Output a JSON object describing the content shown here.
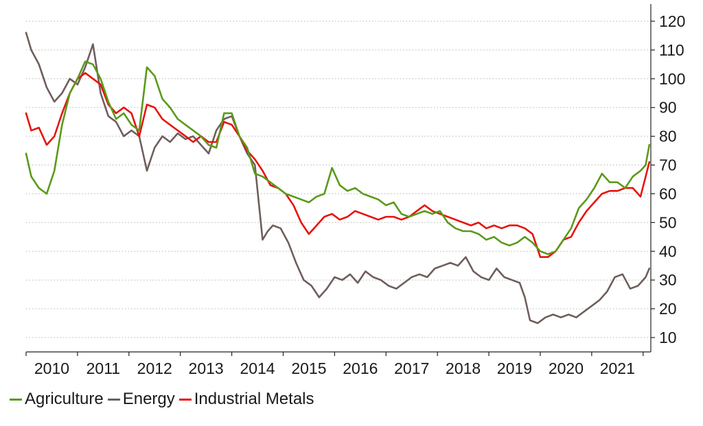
{
  "chart_data": {
    "type": "line",
    "title": "",
    "xlabel": "",
    "ylabel": "",
    "ylim": [
      5,
      125
    ],
    "xlim": [
      2009.75,
      2021.9
    ],
    "y_ticks": [
      10,
      20,
      30,
      40,
      50,
      60,
      70,
      80,
      90,
      100,
      110,
      120
    ],
    "y_axis_position": "right",
    "x_tick_labels": [
      "2010",
      "2011",
      "2012",
      "2013",
      "2014",
      "2015",
      "2016",
      "2017",
      "2018",
      "2019",
      "2020",
      "2021"
    ],
    "grid": "horizontal dotted",
    "legend_position": "bottom-left",
    "series": [
      {
        "name": "Agriculture",
        "color": "#5a9a1a",
        "x": [
          2009.75,
          2009.85,
          2010.0,
          2010.15,
          2010.3,
          2010.45,
          2010.6,
          2010.75,
          2010.9,
          2011.05,
          2011.2,
          2011.35,
          2011.5,
          2011.65,
          2011.8,
          2011.95,
          2012.1,
          2012.25,
          2012.4,
          2012.55,
          2012.7,
          2012.85,
          2013.0,
          2013.15,
          2013.3,
          2013.45,
          2013.6,
          2013.75,
          2013.9,
          2014.05,
          2014.2,
          2014.35,
          2014.5,
          2014.65,
          2014.8,
          2014.95,
          2015.1,
          2015.25,
          2015.4,
          2015.55,
          2015.7,
          2015.85,
          2016.0,
          2016.15,
          2016.3,
          2016.45,
          2016.6,
          2016.75,
          2016.9,
          2017.05,
          2017.2,
          2017.35,
          2017.5,
          2017.65,
          2017.8,
          2017.95,
          2018.1,
          2018.25,
          2018.4,
          2018.55,
          2018.7,
          2018.85,
          2019.0,
          2019.15,
          2019.3,
          2019.45,
          2019.6,
          2019.75,
          2019.9,
          2020.05,
          2020.2,
          2020.35,
          2020.5,
          2020.65,
          2020.8,
          2020.95,
          2021.1,
          2021.25,
          2021.4,
          2021.55,
          2021.7,
          2021.8,
          2021.87
        ],
        "values": [
          74,
          66,
          62,
          60,
          68,
          84,
          95,
          100,
          106,
          105,
          100,
          92,
          86,
          88,
          84,
          82,
          104,
          101,
          93,
          90,
          86,
          84,
          82,
          80,
          77,
          76,
          88,
          88,
          80,
          76,
          67,
          66,
          64,
          62,
          60,
          59,
          58,
          57,
          59,
          60,
          69,
          63,
          61,
          62,
          60,
          59,
          58,
          56,
          57,
          53,
          52,
          53,
          54,
          53,
          54,
          50,
          48,
          47,
          47,
          46,
          44,
          45,
          43,
          42,
          43,
          45,
          43,
          40,
          39,
          40,
          44,
          48,
          55,
          58,
          62,
          67,
          64,
          64,
          62,
          66,
          68,
          70,
          77
        ]
      },
      {
        "name": "Energy",
        "color": "#6f5e5c",
        "x": [
          2009.75,
          2009.85,
          2010.0,
          2010.15,
          2010.3,
          2010.45,
          2010.6,
          2010.75,
          2010.9,
          2011.05,
          2011.2,
          2011.35,
          2011.5,
          2011.65,
          2011.8,
          2011.95,
          2012.1,
          2012.25,
          2012.4,
          2012.55,
          2012.7,
          2012.85,
          2013.0,
          2013.15,
          2013.3,
          2013.45,
          2013.6,
          2013.75,
          2013.9,
          2014.05,
          2014.2,
          2014.35,
          2014.45,
          2014.55,
          2014.7,
          2014.85,
          2015.0,
          2015.15,
          2015.3,
          2015.45,
          2015.6,
          2015.75,
          2015.9,
          2016.05,
          2016.2,
          2016.35,
          2016.5,
          2016.65,
          2016.8,
          2016.95,
          2017.1,
          2017.25,
          2017.4,
          2017.55,
          2017.7,
          2017.85,
          2018.0,
          2018.15,
          2018.3,
          2018.45,
          2018.6,
          2018.75,
          2018.9,
          2019.05,
          2019.2,
          2019.35,
          2019.45,
          2019.55,
          2019.7,
          2019.85,
          2020.0,
          2020.15,
          2020.3,
          2020.45,
          2020.6,
          2020.75,
          2020.9,
          2021.05,
          2021.2,
          2021.35,
          2021.5,
          2021.65,
          2021.8,
          2021.87
        ],
        "values": [
          116,
          110,
          105,
          97,
          92,
          95,
          100,
          98,
          104,
          112,
          95,
          87,
          85,
          80,
          82,
          80,
          68,
          76,
          80,
          78,
          81,
          79,
          80,
          77,
          74,
          82,
          86,
          87,
          80,
          74,
          70,
          44,
          47,
          49,
          48,
          43,
          36,
          30,
          28,
          24,
          27,
          31,
          30,
          32,
          29,
          33,
          31,
          30,
          28,
          27,
          29,
          31,
          32,
          31,
          34,
          35,
          36,
          35,
          38,
          33,
          31,
          30,
          34,
          31,
          30,
          29,
          24,
          16,
          15,
          17,
          18,
          17,
          18,
          17,
          19,
          21,
          23,
          26,
          31,
          32,
          27,
          28,
          31,
          34
        ]
      },
      {
        "name": "Industrial Metals",
        "color": "#e8120c",
        "x": [
          2009.75,
          2009.85,
          2010.0,
          2010.15,
          2010.3,
          2010.45,
          2010.6,
          2010.75,
          2010.9,
          2011.05,
          2011.2,
          2011.35,
          2011.5,
          2011.65,
          2011.8,
          2011.95,
          2012.1,
          2012.25,
          2012.4,
          2012.55,
          2012.7,
          2012.85,
          2013.0,
          2013.15,
          2013.3,
          2013.45,
          2013.6,
          2013.75,
          2013.9,
          2014.05,
          2014.2,
          2014.35,
          2014.5,
          2014.65,
          2014.8,
          2014.95,
          2015.1,
          2015.25,
          2015.4,
          2015.55,
          2015.7,
          2015.85,
          2016.0,
          2016.15,
          2016.3,
          2016.45,
          2016.6,
          2016.75,
          2016.9,
          2017.05,
          2017.2,
          2017.35,
          2017.5,
          2017.65,
          2017.8,
          2017.95,
          2018.1,
          2018.25,
          2018.4,
          2018.55,
          2018.7,
          2018.85,
          2019.0,
          2019.15,
          2019.3,
          2019.45,
          2019.6,
          2019.75,
          2019.9,
          2020.05,
          2020.2,
          2020.35,
          2020.5,
          2020.65,
          2020.8,
          2020.95,
          2021.1,
          2021.25,
          2021.4,
          2021.55,
          2021.7,
          2021.8,
          2021.87
        ],
        "values": [
          88,
          82,
          83,
          77,
          80,
          88,
          95,
          100,
          102,
          100,
          98,
          91,
          88,
          90,
          88,
          80,
          91,
          90,
          86,
          84,
          82,
          80,
          78,
          80,
          78,
          78,
          85,
          84,
          80,
          75,
          72,
          68,
          63,
          62,
          60,
          56,
          50,
          46,
          49,
          52,
          53,
          51,
          52,
          54,
          53,
          52,
          51,
          52,
          52,
          51,
          52,
          54,
          56,
          54,
          53,
          52,
          51,
          50,
          49,
          50,
          48,
          49,
          48,
          49,
          49,
          48,
          46,
          38,
          38,
          40,
          44,
          45,
          50,
          54,
          57,
          60,
          61,
          61,
          62,
          62,
          59,
          66,
          71
        ]
      }
    ]
  }
}
